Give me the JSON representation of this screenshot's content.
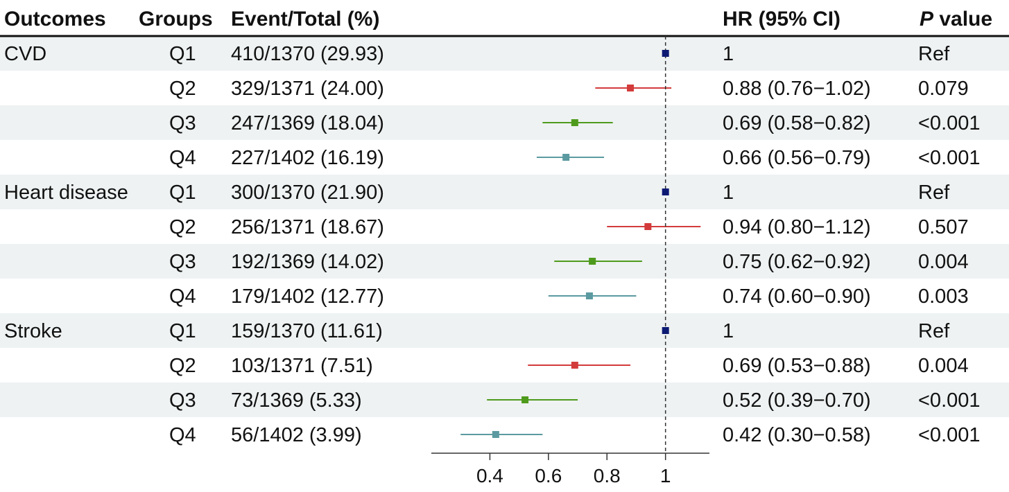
{
  "headers": {
    "outcomes": "Outcomes",
    "groups": "Groups",
    "events": "Event/Total (%)",
    "hr": "HR (95% CI)",
    "p_italic": "P",
    "p_rest": " value"
  },
  "colors": {
    "Q1": "#0d1a73",
    "Q2": "#d33b3b",
    "Q3": "#4e9a1c",
    "Q4": "#5b9aa0",
    "band": "#eef2f2",
    "ref_line": "#333333"
  },
  "chart_data": {
    "type": "forest",
    "reference_value": 1,
    "xlim": [
      0.2,
      1.15
    ],
    "xticks": [
      0.4,
      0.6,
      0.8,
      1
    ],
    "xtick_labels": [
      "0.4",
      "0.6",
      "0.8",
      "1"
    ],
    "rows": [
      {
        "outcome": "CVD",
        "group": "Q1",
        "events": "410/1370 (29.93)",
        "hr": 1,
        "lo": null,
        "hi": null,
        "hr_text": "1",
        "p": "Ref"
      },
      {
        "outcome": "",
        "group": "Q2",
        "events": "329/1371 (24.00)",
        "hr": 0.88,
        "lo": 0.76,
        "hi": 1.02,
        "hr_text": "0.88 (0.76−1.02)",
        "p": "0.079"
      },
      {
        "outcome": "",
        "group": "Q3",
        "events": "247/1369 (18.04)",
        "hr": 0.69,
        "lo": 0.58,
        "hi": 0.82,
        "hr_text": "0.69 (0.58−0.82)",
        "p": "<0.001"
      },
      {
        "outcome": "",
        "group": "Q4",
        "events": "227/1402 (16.19)",
        "hr": 0.66,
        "lo": 0.56,
        "hi": 0.79,
        "hr_text": "0.66 (0.56−0.79)",
        "p": "<0.001"
      },
      {
        "outcome": "Heart disease",
        "group": "Q1",
        "events": "300/1370 (21.90)",
        "hr": 1,
        "lo": null,
        "hi": null,
        "hr_text": "1",
        "p": "Ref"
      },
      {
        "outcome": "",
        "group": "Q2",
        "events": "256/1371 (18.67)",
        "hr": 0.94,
        "lo": 0.8,
        "hi": 1.12,
        "hr_text": "0.94 (0.80−1.12)",
        "p": "0.507"
      },
      {
        "outcome": "",
        "group": "Q3",
        "events": "192/1369 (14.02)",
        "hr": 0.75,
        "lo": 0.62,
        "hi": 0.92,
        "hr_text": "0.75 (0.62−0.92)",
        "p": "0.004"
      },
      {
        "outcome": "",
        "group": "Q4",
        "events": "179/1402 (12.77)",
        "hr": 0.74,
        "lo": 0.6,
        "hi": 0.9,
        "hr_text": "0.74 (0.60−0.90)",
        "p": "0.003"
      },
      {
        "outcome": "Stroke",
        "group": "Q1",
        "events": "159/1370 (11.61)",
        "hr": 1,
        "lo": null,
        "hi": null,
        "hr_text": "1",
        "p": "Ref"
      },
      {
        "outcome": "",
        "group": "Q2",
        "events": "103/1371 (7.51)",
        "hr": 0.69,
        "lo": 0.53,
        "hi": 0.88,
        "hr_text": "0.69 (0.53−0.88)",
        "p": "0.004"
      },
      {
        "outcome": "",
        "group": "Q3",
        "events": "73/1369 (5.33)",
        "hr": 0.52,
        "lo": 0.39,
        "hi": 0.7,
        "hr_text": "0.52 (0.39−0.70)",
        "p": "<0.001"
      },
      {
        "outcome": "",
        "group": "Q4",
        "events": "56/1402 (3.99)",
        "hr": 0.42,
        "lo": 0.3,
        "hi": 0.58,
        "hr_text": "0.42 (0.30−0.58)",
        "p": "<0.001"
      }
    ]
  }
}
